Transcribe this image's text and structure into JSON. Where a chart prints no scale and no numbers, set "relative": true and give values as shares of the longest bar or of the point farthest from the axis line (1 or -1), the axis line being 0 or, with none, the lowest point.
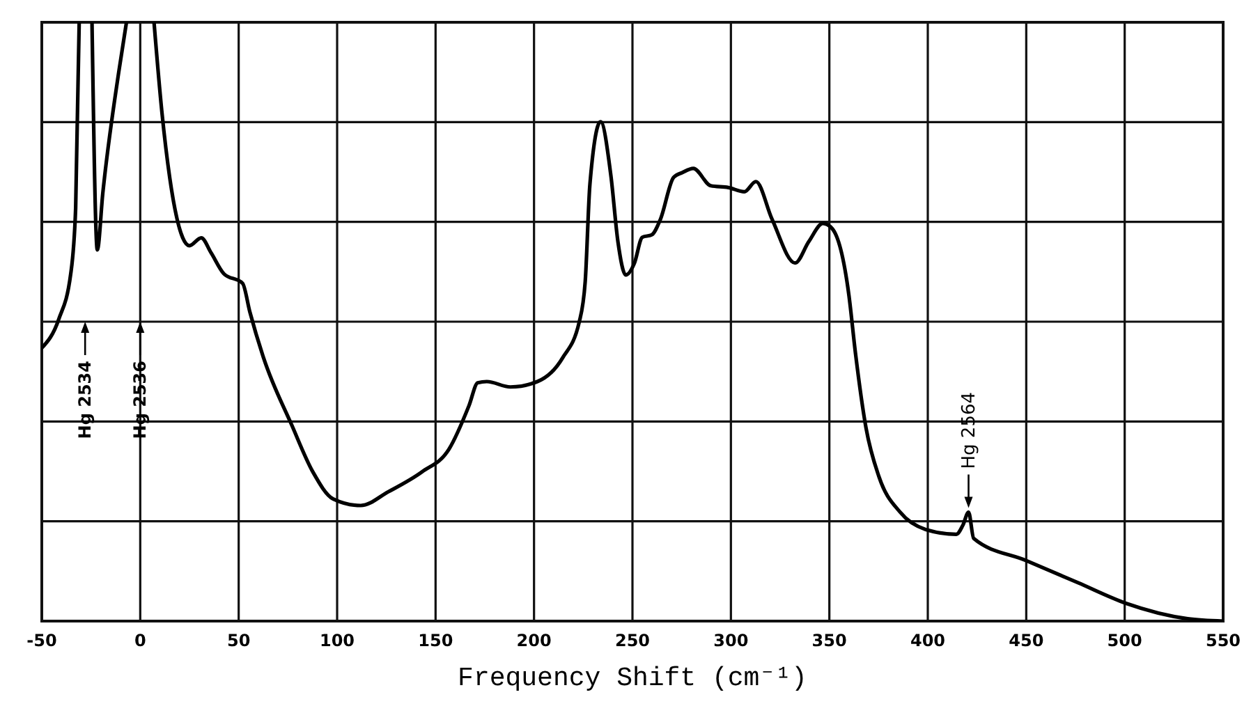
{
  "chart_data": {
    "type": "line",
    "relative": true,
    "xlabel": "Frequency Shift (cm⁻¹)",
    "xlim": [
      -50,
      550
    ],
    "xticks": [
      -50,
      0,
      50,
      100,
      150,
      200,
      250,
      300,
      350,
      400,
      450,
      500,
      550
    ],
    "grid": true,
    "annotations": [
      "Hg 2534",
      "Hg 2536",
      {
        "text": "Hg 2564",
        "x": 420.7,
        "y": 0.182
      }
    ],
    "series": [
      {
        "color": "#000000",
        "x": [
          -50,
          -41.4,
          -35.3,
          -32.8,
          -31,
          -28,
          -24.5,
          -21.8,
          -19,
          -11,
          -7,
          0,
          7,
          11,
          15,
          21.6,
          25,
          31,
          36,
          42.5,
          52,
          55.7,
          62.6,
          77,
          87.7,
          98,
          112,
          126,
          143,
          156.8,
          167,
          171.4,
          176,
          188,
          201.7,
          214.6,
          223,
          226,
          228.4,
          233.8,
          239,
          242.6,
          246.6,
          250.9,
          255,
          259.8,
          264.2,
          270.9,
          275.3,
          280.9,
          289.8,
          298.7,
          306.8,
          312.7,
          320.9,
          332.6,
          339.6,
          346.7,
          351.3,
          359.9,
          363.2,
          368.6,
          375.1,
          385.9,
          398.9,
          414.5,
          417.8,
          420.7,
          423.3,
          450,
          476.3,
          500.4,
          532,
          550
        ],
        "values": [
          0.456,
          0.504,
          0.58,
          0.69,
          1.0,
          null,
          1.0,
          0.62,
          0.715,
          0.915,
          1.0,
          null,
          1.0,
          0.85,
          0.74,
          0.64,
          0.627,
          0.64,
          0.615,
          0.58,
          0.564,
          0.516,
          0.44,
          0.327,
          0.249,
          0.204,
          0.193,
          0.216,
          0.249,
          0.287,
          0.36,
          0.398,
          0.4,
          0.391,
          0.4,
          0.44,
          0.5,
          0.567,
          0.73,
          0.834,
          0.745,
          0.634,
          0.578,
          0.597,
          0.641,
          0.645,
          0.671,
          0.741,
          0.749,
          0.756,
          0.727,
          0.724,
          0.717,
          0.734,
          0.671,
          0.598,
          0.634,
          0.664,
          0.656,
          0.545,
          0.449,
          0.323,
          0.242,
          0.182,
          0.153,
          0.145,
          0.16,
          0.182,
          0.138,
          0.101,
          0.064,
          0.03,
          0.004,
          0.0
        ]
      }
    ]
  }
}
